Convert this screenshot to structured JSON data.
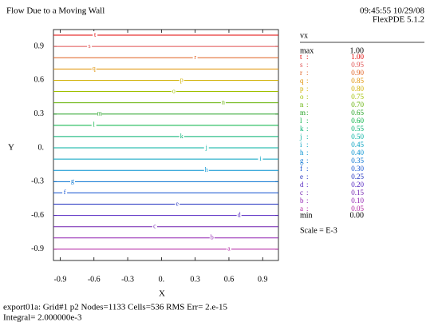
{
  "chart_data": {
    "type": "contour",
    "title": "Flow Due to a Moving Wall",
    "timestamp": "09:45:55 10/29/08",
    "software": "FlexPDE 5.1.2",
    "xlabel": "X",
    "ylabel": "Y",
    "xlim": [
      -0.96,
      1.04
    ],
    "ylim": [
      -1.0,
      1.05
    ],
    "xticks": [
      -0.9,
      -0.6,
      -0.3,
      {
        "value": 0,
        "label": "0."
      },
      0.3,
      0.6,
      0.9
    ],
    "yticks": [
      0.9,
      0.6,
      0.3,
      {
        "value": 0,
        "label": "0."
      },
      -0.3,
      -0.6,
      -0.9
    ],
    "variable": "vx",
    "max_label": "max",
    "max": 1,
    "max_value_label": "1.00",
    "min_label": "min",
    "min": 0,
    "min_value_label": "0.00",
    "separator": ":",
    "scale": "Scale = E-3",
    "levels": [
      {
        "name": "t",
        "value": 1.0,
        "value_label": "1.00",
        "y": 1.0,
        "label_x": -0.59,
        "color": "#e00000"
      },
      {
        "name": "s",
        "value": 0.95,
        "value_label": "0.95",
        "y": 0.9,
        "label_x": -0.64,
        "color": "#e05050"
      },
      {
        "name": "r",
        "value": 0.9,
        "value_label": "0.90",
        "y": 0.8,
        "label_x": 0.3,
        "color": "#e06020"
      },
      {
        "name": "q",
        "value": 0.85,
        "value_label": "0.85",
        "y": 0.7,
        "label_x": -0.6,
        "color": "#e09000"
      },
      {
        "name": "p",
        "value": 0.8,
        "value_label": "0.80",
        "y": 0.6,
        "label_x": 0.18,
        "color": "#d0b000"
      },
      {
        "name": "o",
        "value": 0.75,
        "value_label": "0.75",
        "y": 0.5,
        "label_x": 0.11,
        "color": "#a0c000"
      },
      {
        "name": "n",
        "value": 0.7,
        "value_label": "0.70",
        "y": 0.4,
        "label_x": 0.55,
        "color": "#60b000"
      },
      {
        "name": "m",
        "value": 0.65,
        "value_label": "0.65",
        "y": 0.3,
        "label_x": -0.55,
        "color": "#20a020"
      },
      {
        "name": "l",
        "value": 0.6,
        "value_label": "0.60",
        "y": 0.2,
        "label_x": -0.6,
        "color": "#00b040"
      },
      {
        "name": "k",
        "value": 0.55,
        "value_label": "0.55",
        "y": 0.1,
        "label_x": 0.18,
        "color": "#00b070"
      },
      {
        "name": "j",
        "value": 0.5,
        "value_label": "0.50",
        "y": 0.0,
        "label_x": 0.4,
        "color": "#00b0a0"
      },
      {
        "name": "i",
        "value": 0.45,
        "value_label": "0.45",
        "y": -0.1,
        "label_x": 0.88,
        "color": "#00a0c0"
      },
      {
        "name": "h",
        "value": 0.4,
        "value_label": "0.40",
        "y": -0.2,
        "label_x": 0.4,
        "color": "#0090d0"
      },
      {
        "name": "g",
        "value": 0.35,
        "value_label": "0.35",
        "y": -0.3,
        "label_x": -0.79,
        "color": "#0070d0"
      },
      {
        "name": "f",
        "value": 0.3,
        "value_label": "0.30",
        "y": -0.4,
        "label_x": -0.86,
        "color": "#1050d0"
      },
      {
        "name": "e",
        "value": 0.25,
        "value_label": "0.25",
        "y": -0.5,
        "label_x": 0.14,
        "color": "#2030c0"
      },
      {
        "name": "d",
        "value": 0.2,
        "value_label": "0.20",
        "y": -0.6,
        "label_x": 0.69,
        "color": "#5020c0"
      },
      {
        "name": "c",
        "value": 0.15,
        "value_label": "0.15",
        "y": -0.7,
        "label_x": -0.06,
        "color": "#7020b0"
      },
      {
        "name": "b",
        "value": 0.1,
        "value_label": "0.10",
        "y": -0.8,
        "label_x": 0.45,
        "color": "#9020b0"
      },
      {
        "name": "a",
        "value": 0.05,
        "value_label": "0.05",
        "y": -0.9,
        "label_x": 0.6,
        "color": "#b020a0"
      }
    ],
    "footer": [
      "export01a:  Grid#1  p2  Nodes=1133 Cells=536 RMS Err= 2.e-15",
      "Integral=   2.000000e-3"
    ]
  }
}
